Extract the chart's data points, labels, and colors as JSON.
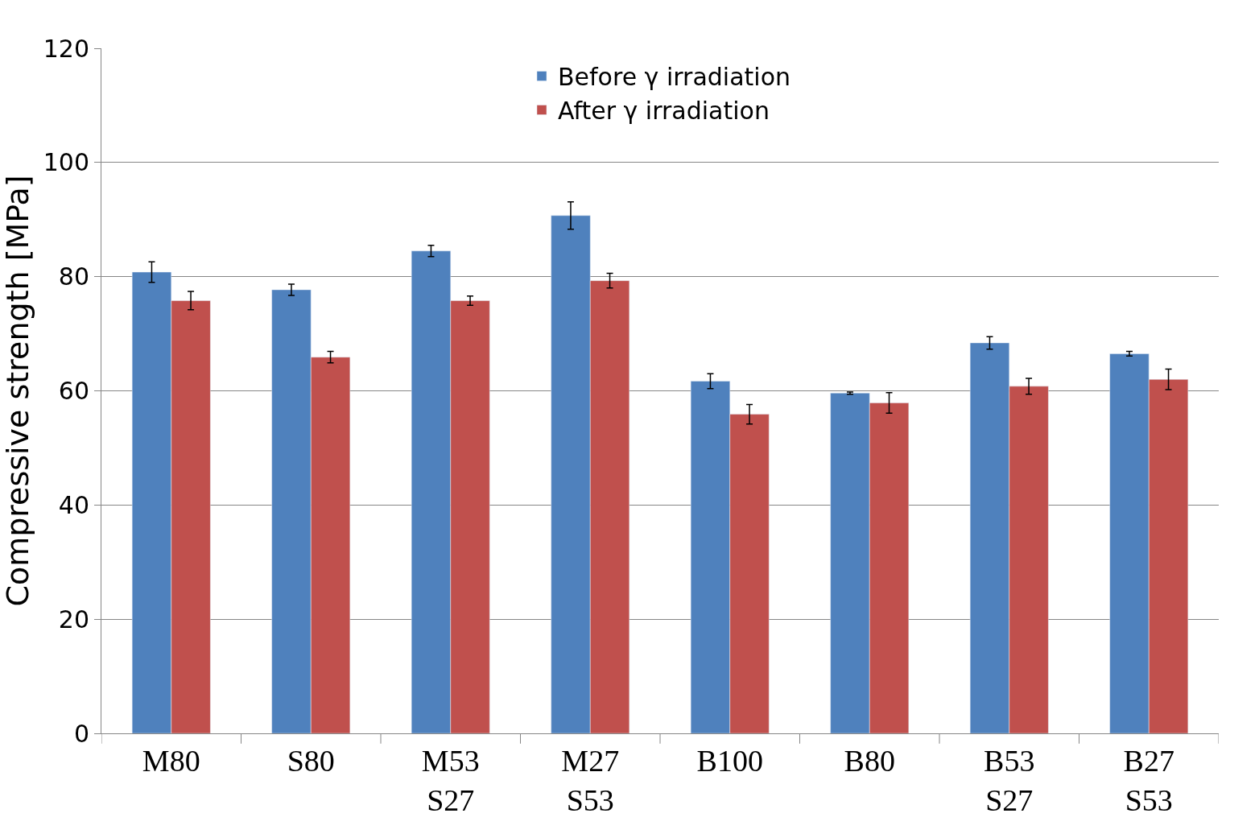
{
  "chart_data": {
    "type": "bar",
    "ylabel": "Compressive strength [MPa]",
    "categories": [
      "M80",
      "S80",
      "M53\nS27",
      "M27\nS53",
      "B100",
      "B80",
      "B53\nS27",
      "B27\nS53"
    ],
    "series": [
      {
        "name": "Before γ irradiation",
        "color": "#4f81bd",
        "values": [
          80.8,
          77.7,
          84.5,
          90.7,
          61.7,
          59.6,
          68.4,
          66.5
        ],
        "errors": [
          1.8,
          1,
          1,
          2.4,
          1.3,
          0.2,
          1.1,
          0.4
        ]
      },
      {
        "name": "After γ irradiation",
        "color": "#c0504d",
        "values": [
          75.8,
          65.9,
          75.8,
          79.3,
          55.9,
          57.9,
          60.8,
          62.0
        ],
        "errors": [
          1.6,
          1,
          0.8,
          1.3,
          1.7,
          1.8,
          1.4,
          1.8
        ]
      }
    ],
    "ylim": [
      0,
      120
    ],
    "yticks": [
      0,
      20,
      40,
      60,
      80,
      100,
      120
    ],
    "grid": "y",
    "legend": "top"
  }
}
